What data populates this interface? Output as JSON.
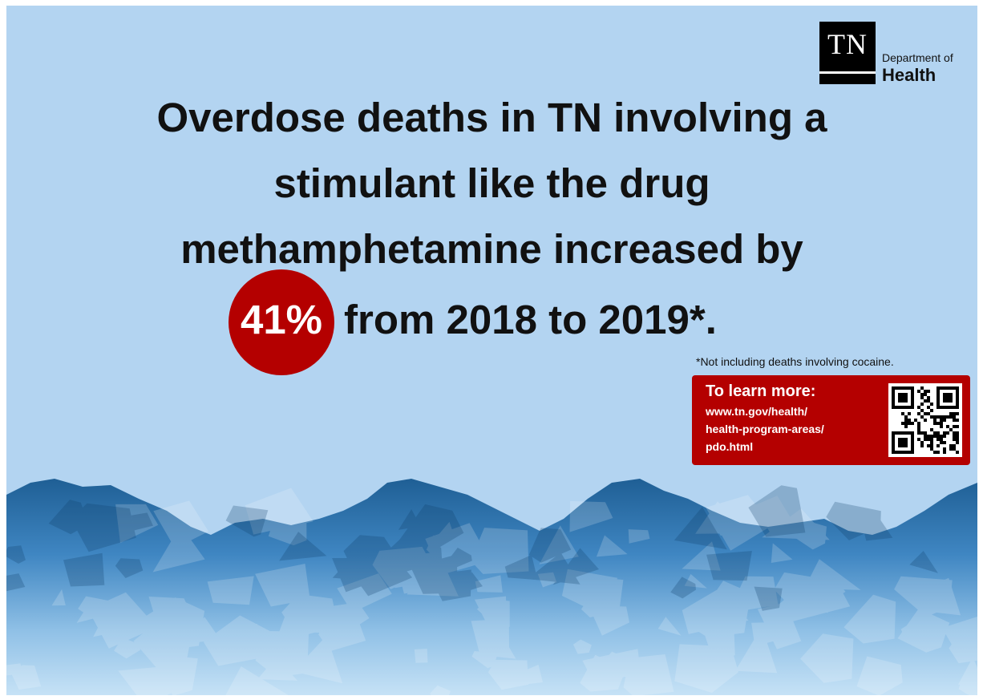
{
  "logo": {
    "state": "TN",
    "department": "Department of",
    "name": "Health"
  },
  "headline": {
    "line1": "Overdose deaths in TN involving a",
    "line2": "stimulant like the drug",
    "line3": "methamphetamine increased by",
    "percent": "41%",
    "line4": "from 2018 to 2019*."
  },
  "footnote": "*Not including deaths involving cocaine.",
  "learn_more": {
    "title": "To learn more:",
    "url_lines": [
      "www.tn.gov/health/",
      "health-program-areas/",
      "pdo.html"
    ]
  },
  "colors": {
    "background": "#b3d4f1",
    "accent_red": "#b40000",
    "text": "#111111"
  },
  "icons": [
    "qr-code-icon",
    "crystal-meth-image"
  ]
}
